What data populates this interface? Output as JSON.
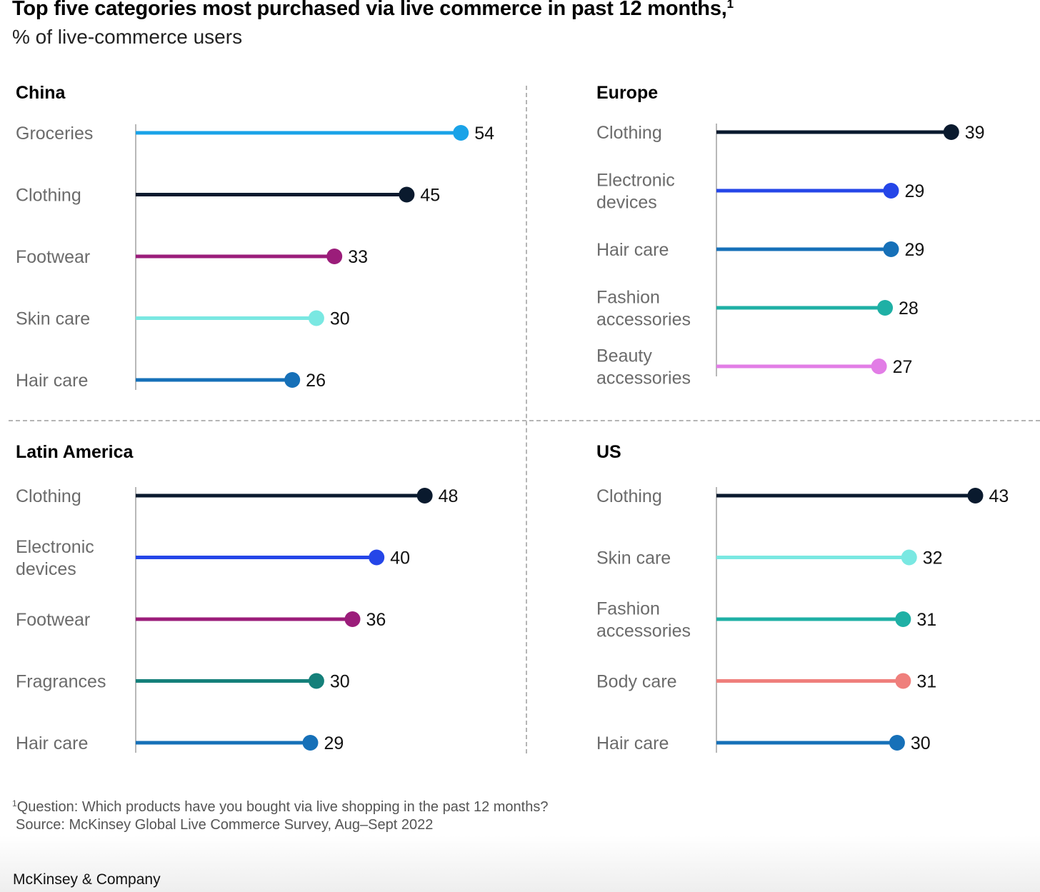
{
  "header": {
    "title": "Top five categories most purchased via live commerce in past 12 months,",
    "title_sup": "1",
    "subtitle": "% of live-commerce users"
  },
  "chart_data": [
    {
      "type": "lollipop",
      "title": "China",
      "categories": [
        "Groceries",
        "Clothing",
        "Footwear",
        "Skin care",
        "Hair care"
      ],
      "values": [
        54,
        45,
        33,
        30,
        26
      ],
      "colors": [
        "#1aa3e8",
        "#0a1a2e",
        "#9b1d7a",
        "#7ae8e2",
        "#1670b8"
      ]
    },
    {
      "type": "lollipop",
      "title": "Europe",
      "categories": [
        [
          "Clothing"
        ],
        [
          "Electronic",
          "devices"
        ],
        [
          "Hair care"
        ],
        [
          "Fashion",
          "accessories"
        ],
        [
          "Beauty",
          "accessories"
        ]
      ],
      "values": [
        39,
        29,
        29,
        28,
        27
      ],
      "colors": [
        "#0a1a2e",
        "#2546e8",
        "#1670b8",
        "#1fb0a5",
        "#e27de6"
      ]
    },
    {
      "type": "lollipop",
      "title": "Latin America",
      "categories": [
        [
          "Clothing"
        ],
        [
          "Electronic",
          "devices"
        ],
        [
          "Footwear"
        ],
        [
          "Fragrances"
        ],
        [
          "Hair care"
        ]
      ],
      "values": [
        48,
        40,
        36,
        30,
        29
      ],
      "colors": [
        "#0a1a2e",
        "#2546e8",
        "#9b1d7a",
        "#15807a",
        "#1670b8"
      ]
    },
    {
      "type": "lollipop",
      "title": "US",
      "categories": [
        [
          "Clothing"
        ],
        [
          "Skin care"
        ],
        [
          "Fashion",
          "accessories"
        ],
        [
          "Body care"
        ],
        [
          "Hair care"
        ]
      ],
      "values": [
        43,
        32,
        31,
        31,
        30
      ],
      "colors": [
        "#0a1a2e",
        "#7ae8e2",
        "#1fb0a5",
        "#ef7f7c",
        "#1670b8"
      ]
    }
  ],
  "footer": {
    "footnote_sup": "1",
    "footnote_question": "Question: Which products have you bought via live shopping in the past 12 months?",
    "source": "Source: McKinsey Global Live Commerce Survey, Aug–Sept 2022",
    "brand": "McKinsey & Company"
  }
}
